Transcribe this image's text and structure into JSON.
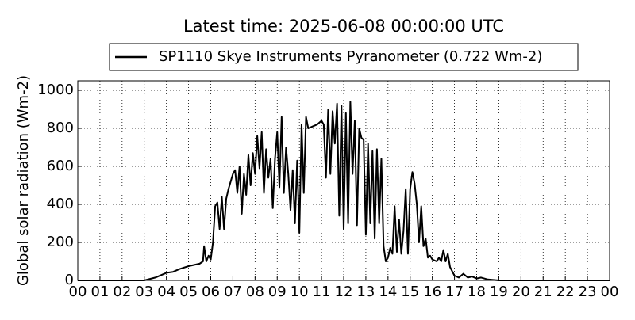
{
  "chart_data": {
    "type": "line",
    "title": "Latest time: 2025-06-08 00:00:00 UTC",
    "y_label": "Global solar radiation (Wm-2)",
    "x": [
      0,
      3,
      3.5,
      4,
      4.3,
      4.6,
      5,
      5.5,
      5.65,
      5.7,
      5.8,
      5.9,
      6.0,
      6.1,
      6.2,
      6.3,
      6.4,
      6.5,
      6.6,
      6.7,
      6.8,
      7.0,
      7.1,
      7.2,
      7.3,
      7.4,
      7.5,
      7.6,
      7.7,
      7.8,
      7.9,
      8.0,
      8.1,
      8.2,
      8.3,
      8.4,
      8.5,
      8.6,
      8.7,
      8.8,
      8.9,
      9.0,
      9.1,
      9.2,
      9.3,
      9.4,
      9.5,
      9.6,
      9.7,
      9.8,
      9.9,
      10.0,
      10.1,
      10.2,
      10.3,
      10.4,
      10.6,
      10.8,
      11.0,
      11.1,
      11.2,
      11.3,
      11.4,
      11.5,
      11.6,
      11.7,
      11.8,
      11.9,
      12.0,
      12.1,
      12.2,
      12.3,
      12.4,
      12.5,
      12.6,
      12.7,
      12.8,
      12.9,
      13.0,
      13.1,
      13.2,
      13.3,
      13.4,
      13.5,
      13.6,
      13.7,
      13.8,
      13.9,
      14.0,
      14.1,
      14.2,
      14.3,
      14.4,
      14.5,
      14.6,
      14.7,
      14.8,
      14.9,
      15.0,
      15.1,
      15.2,
      15.3,
      15.4,
      15.5,
      15.6,
      15.7,
      15.8,
      15.9,
      16.0,
      16.2,
      16.3,
      16.4,
      16.5,
      16.6,
      16.7,
      16.8,
      17.0,
      17.2,
      17.4,
      17.6,
      17.8,
      18.0,
      18.2,
      18.5,
      19.0,
      24
    ],
    "series": [
      {
        "name": "SP1110 Skye Instruments Pyranometer (0.722 Wm-2)",
        "color": "#000000",
        "values": [
          0,
          0,
          15,
          40,
          45,
          60,
          75,
          88,
          100,
          180,
          100,
          130,
          110,
          200,
          390,
          410,
          270,
          440,
          270,
          430,
          480,
          560,
          580,
          460,
          600,
          350,
          560,
          450,
          660,
          500,
          670,
          560,
          760,
          590,
          780,
          460,
          690,
          540,
          640,
          380,
          640,
          780,
          490,
          860,
          460,
          700,
          560,
          370,
          580,
          300,
          630,
          250,
          820,
          460,
          860,
          800,
          810,
          820,
          840,
          820,
          540,
          900,
          560,
          890,
          720,
          930,
          340,
          920,
          270,
          880,
          300,
          940,
          560,
          840,
          290,
          800,
          750,
          740,
          240,
          720,
          300,
          680,
          220,
          690,
          300,
          640,
          180,
          100,
          120,
          170,
          140,
          390,
          150,
          320,
          140,
          260,
          480,
          140,
          480,
          570,
          510,
          400,
          200,
          390,
          180,
          220,
          120,
          130,
          110,
          100,
          120,
          100,
          160,
          100,
          140,
          70,
          25,
          15,
          35,
          15,
          20,
          10,
          15,
          5,
          0,
          0
        ]
      }
    ],
    "xlim": [
      0,
      24
    ],
    "ylim": [
      0,
      1050
    ],
    "xticks": [
      {
        "value": 0,
        "label": "00"
      },
      {
        "value": 1,
        "label": "01"
      },
      {
        "value": 2,
        "label": "02"
      },
      {
        "value": 3,
        "label": "03"
      },
      {
        "value": 4,
        "label": "04"
      },
      {
        "value": 5,
        "label": "05"
      },
      {
        "value": 6,
        "label": "06"
      },
      {
        "value": 7,
        "label": "07"
      },
      {
        "value": 8,
        "label": "08"
      },
      {
        "value": 9,
        "label": "09"
      },
      10,
      11,
      12,
      13,
      14,
      15,
      16,
      17,
      18,
      19,
      20,
      21,
      22,
      23,
      {
        "value": 24,
        "label": "00"
      }
    ],
    "yticks": [
      0,
      200,
      400,
      600,
      800,
      1000
    ],
    "grid": true,
    "legend": "top"
  }
}
